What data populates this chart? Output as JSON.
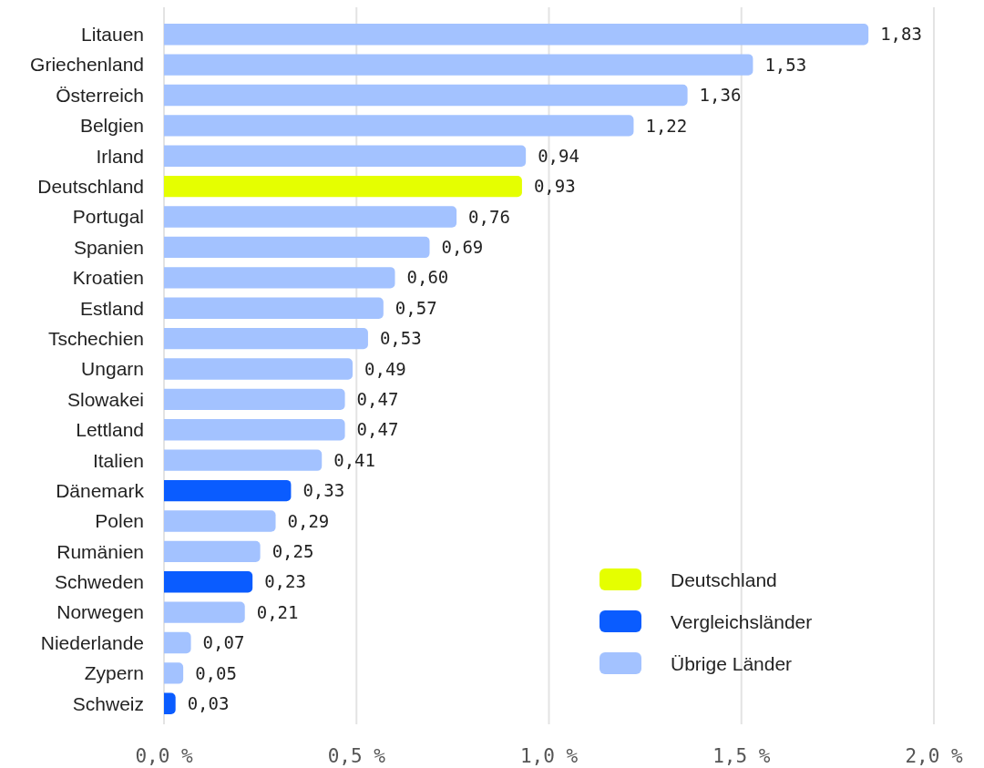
{
  "chart_data": {
    "type": "bar",
    "orientation": "horizontal",
    "categories": [
      "Litauen",
      "Griechenland",
      "Österreich",
      "Belgien",
      "Irland",
      "Deutschland",
      "Portugal",
      "Spanien",
      "Kroatien",
      "Estland",
      "Tschechien",
      "Ungarn",
      "Slowakei",
      "Lettland",
      "Italien",
      "Dänemark",
      "Polen",
      "Rumänien",
      "Schweden",
      "Norwegen",
      "Niederlande",
      "Zypern",
      "Schweiz"
    ],
    "series": [
      {
        "name": "Deutschland",
        "color": "#e5ff00",
        "values": [
          null,
          null,
          null,
          null,
          null,
          0.93,
          null,
          null,
          null,
          null,
          null,
          null,
          null,
          null,
          null,
          null,
          null,
          null,
          null,
          null,
          null,
          null,
          null
        ],
        "value_labels": [
          null,
          null,
          null,
          null,
          null,
          "0,93",
          null,
          null,
          null,
          null,
          null,
          null,
          null,
          null,
          null,
          null,
          null,
          null,
          null,
          null,
          null,
          null,
          null
        ]
      },
      {
        "name": "Vergleichsländer",
        "color": "#0a5cff",
        "values": [
          null,
          null,
          null,
          null,
          null,
          null,
          null,
          null,
          null,
          null,
          null,
          null,
          null,
          null,
          null,
          0.33,
          null,
          null,
          0.23,
          null,
          null,
          null,
          0.03
        ],
        "value_labels": [
          null,
          null,
          null,
          null,
          null,
          null,
          null,
          null,
          null,
          null,
          null,
          null,
          null,
          null,
          null,
          "0,33",
          null,
          null,
          "0,23",
          null,
          null,
          null,
          "0,03"
        ]
      },
      {
        "name": "Übrige Länder",
        "color": "#a3c2ff",
        "values": [
          1.83,
          1.53,
          1.36,
          1.22,
          0.94,
          null,
          0.76,
          0.69,
          0.6,
          0.57,
          0.53,
          0.49,
          0.47,
          0.47,
          0.41,
          null,
          0.29,
          0.25,
          null,
          0.21,
          0.07,
          0.05,
          null
        ],
        "value_labels": [
          "1,83",
          "1,53",
          "1,36",
          "1,22",
          "0,94",
          null,
          "0,76",
          "0,69",
          "0,60",
          "0,57",
          "0,53",
          "0,49",
          "0,47",
          "0,47",
          "0,41",
          null,
          "0,29",
          "0,25",
          null,
          "0,21",
          "0,07",
          "0,05",
          null
        ]
      }
    ],
    "xlim": [
      0,
      2.0
    ],
    "xticks": [
      {
        "value": 0,
        "label": "0,0 %"
      },
      {
        "value": 0.5,
        "label": "0,5 %"
      },
      {
        "value": 1.0,
        "label": "1,0 %"
      },
      {
        "value": 1.5,
        "label": "1,5 %"
      },
      {
        "value": 2.0,
        "label": "2,0 %"
      }
    ],
    "grid": "x",
    "legend": "bottom right"
  }
}
